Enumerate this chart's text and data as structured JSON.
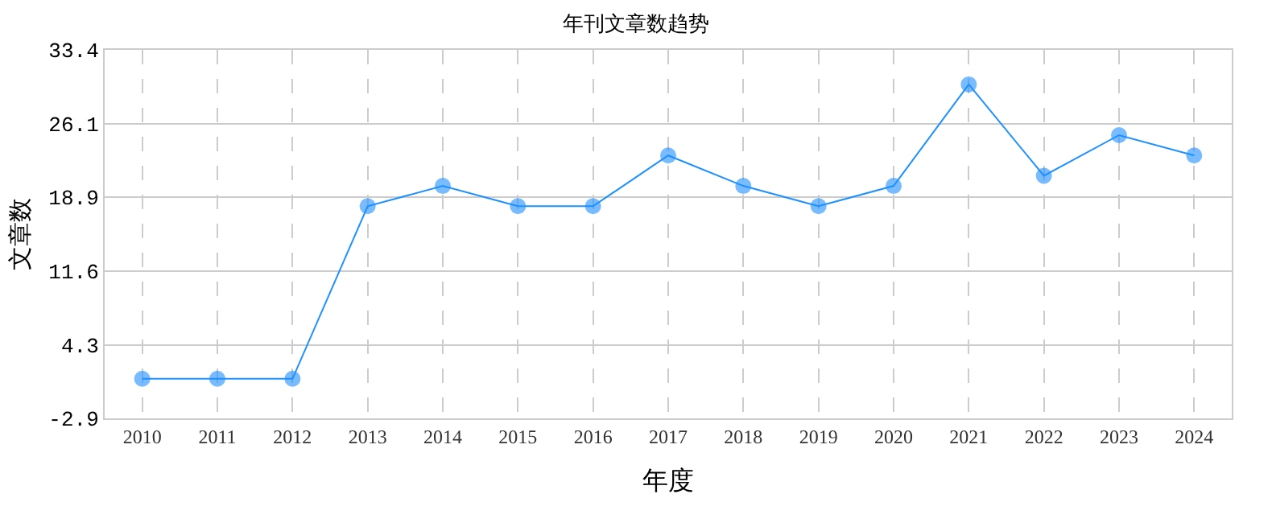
{
  "chart_data": {
    "type": "line",
    "title": "年刊文章数趋势",
    "xlabel": "年度",
    "ylabel": "文章数",
    "categories": [
      "2010",
      "2011",
      "2012",
      "2013",
      "2014",
      "2015",
      "2016",
      "2017",
      "2018",
      "2019",
      "2020",
      "2021",
      "2022",
      "2023",
      "2024"
    ],
    "series": [
      {
        "color": "#1e90ff",
        "values": [
          1,
          1,
          1,
          18,
          20,
          18,
          18,
          23,
          20,
          18,
          20,
          30,
          21,
          25,
          23
        ]
      }
    ],
    "ylim": [
      -2.9,
      33.4
    ],
    "yticks": [
      -2.9,
      4.3,
      11.6,
      18.9,
      26.1,
      33.4
    ],
    "grid": true,
    "marker": "circle",
    "line_style": "solid",
    "legend": false
  }
}
